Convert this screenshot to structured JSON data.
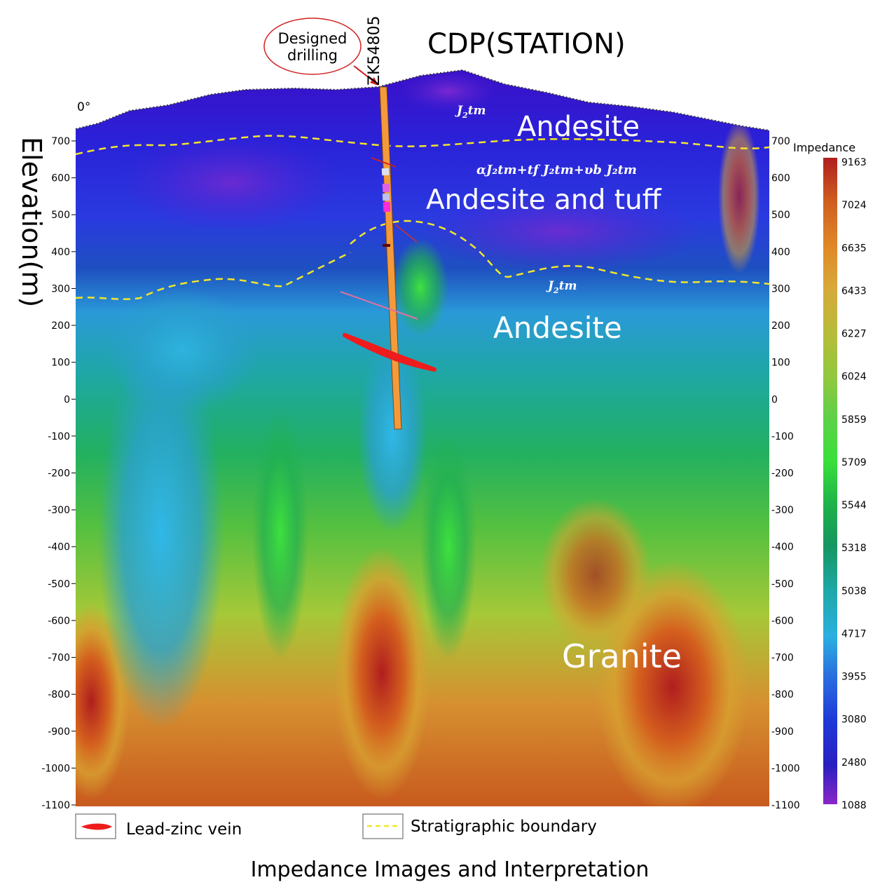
{
  "header": {
    "cdp_title": "CDP(STATION)",
    "angle_label": "0°",
    "drill_callout": [
      "Designed",
      "drilling"
    ],
    "well_id": "ZK54805"
  },
  "axes": {
    "y_title": "Elevation(m)",
    "y_ticks": [
      "700",
      "600",
      "500",
      "400",
      "300",
      "200",
      "100",
      "0",
      "-100",
      "-200",
      "-300",
      "-400",
      "-500",
      "-600",
      "-700",
      "-800",
      "-900",
      "-1000",
      "-1100"
    ],
    "y_values": [
      700,
      600,
      500,
      400,
      300,
      200,
      100,
      0,
      -100,
      -200,
      -300,
      -400,
      -500,
      -600,
      -700,
      -800,
      -900,
      -1000,
      -1100
    ],
    "y_range": [
      -1100,
      750
    ]
  },
  "colorbar": {
    "title": "Impedance",
    "ticks": [
      "9163",
      "7024",
      "6635",
      "6433",
      "6227",
      "6024",
      "5859",
      "5709",
      "5544",
      "5318",
      "5038",
      "4717",
      "3955",
      "3080",
      "2480",
      "1088"
    ],
    "colors": [
      "#b01e1e",
      "#e07a1e",
      "#d9a23a",
      "#c8c43a",
      "#a8d43a",
      "#6ad45a",
      "#3ee23e",
      "#1fb84a",
      "#169a5e",
      "#1ea8a0",
      "#2aa8d8",
      "#2a7ad8",
      "#1e40d8",
      "#2020c8",
      "#4a1ec0",
      "#7a28c8"
    ]
  },
  "annotations": {
    "andesite_top": "Andesite",
    "jtm_top": [
      "J",
      "2",
      "tm"
    ],
    "formula": "αJ₂tm+tf J₂tm+υb J₂tm",
    "andesite_tuff": "Andesite and tuff",
    "jtm_mid": [
      "J",
      "2",
      "tm"
    ],
    "andesite_mid": "Andesite",
    "granite": "Granite"
  },
  "legend": {
    "vein": "Lead-zinc vein",
    "boundary": "Stratigraphic boundary"
  },
  "caption": "Impedance Images and Interpretation"
}
